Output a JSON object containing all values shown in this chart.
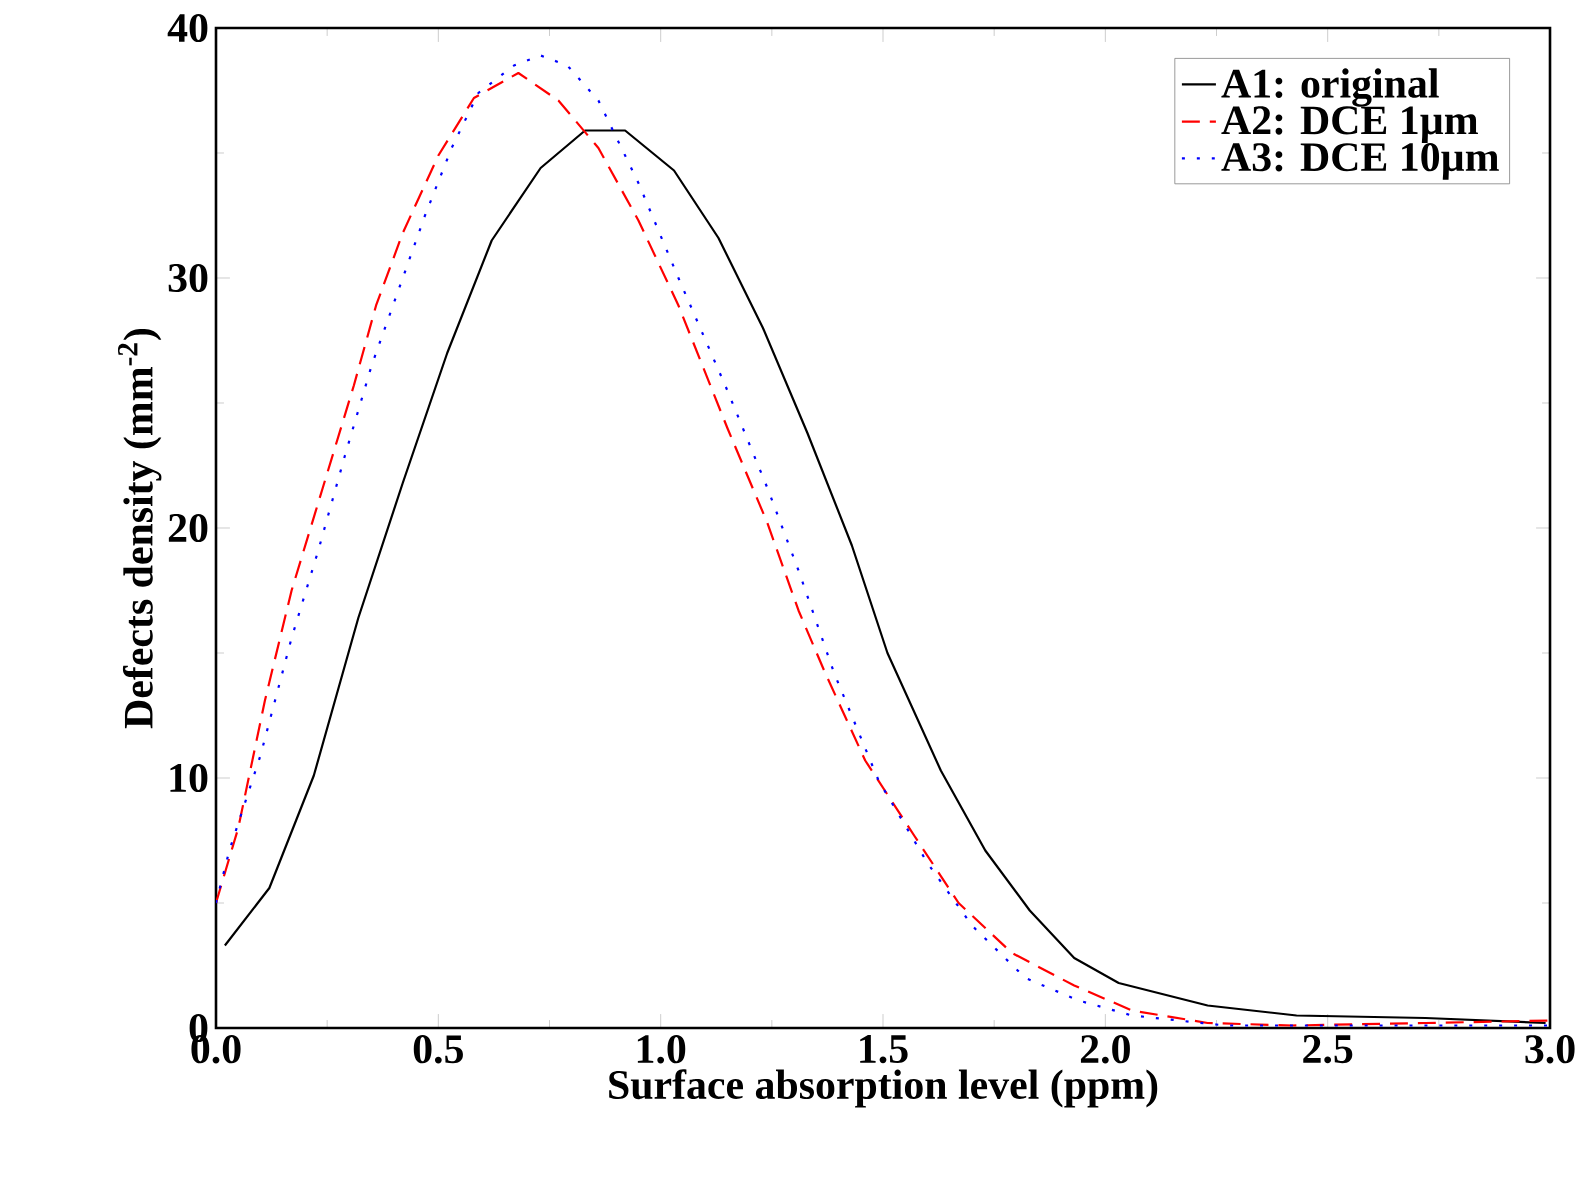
{
  "chart_data": {
    "type": "line",
    "xlabel": "Surface absorption level (ppm)",
    "ylabel": "Defects density (mm$^{-2}$)",
    "xlim": [
      0,
      3
    ],
    "ylim": [
      0,
      40
    ],
    "xticks": [
      {
        "value": 0,
        "label": "0.0"
      },
      {
        "value": 0.5,
        "label": "0.5"
      },
      {
        "value": 1,
        "label": "1.0"
      },
      {
        "value": 1.5,
        "label": "1.5"
      },
      {
        "value": 2,
        "label": "2.0"
      },
      {
        "value": 2.5,
        "label": "2.5"
      },
      {
        "value": 3,
        "label": "3.0"
      }
    ],
    "yticks": [
      0,
      10,
      20,
      30,
      40
    ],
    "legend": "top right",
    "grid": false,
    "series": [
      {
        "name": "A1: original",
        "color": "#000000",
        "line_style": "solid",
        "x": [
          0.02,
          0.12,
          0.22,
          0.32,
          0.42,
          0.52,
          0.62,
          0.73,
          0.83,
          0.92,
          1.03,
          1.13,
          1.23,
          1.33,
          1.43,
          1.51,
          1.63,
          1.73,
          1.83,
          1.93,
          2.03,
          2.23,
          2.43,
          2.72,
          2.99
        ],
        "values": [
          3.3,
          5.6,
          10.1,
          16.4,
          21.8,
          27.0,
          31.5,
          34.4,
          35.9,
          35.9,
          34.3,
          31.6,
          28.0,
          23.8,
          19.3,
          15.0,
          10.3,
          7.1,
          4.7,
          2.8,
          1.8,
          0.9,
          0.5,
          0.4,
          0.2
        ]
      },
      {
        "name": "A2: DCE 1µm",
        "color": "#ff0000",
        "line_style": "dashed",
        "x": [
          0.0,
          0.05,
          0.11,
          0.17,
          0.24,
          0.31,
          0.36,
          0.42,
          0.5,
          0.58,
          0.68,
          0.77,
          0.86,
          0.95,
          1.04,
          1.15,
          1.24,
          1.31,
          1.37,
          1.46,
          1.57,
          1.67,
          1.79,
          1.93,
          2.06,
          2.23,
          2.42,
          2.72,
          3.0
        ],
        "values": [
          5.0,
          8.0,
          13.1,
          17.5,
          21.6,
          25.7,
          28.9,
          31.8,
          34.9,
          37.2,
          38.2,
          37.1,
          35.2,
          32.3,
          28.9,
          24.0,
          20.2,
          16.7,
          14.2,
          10.7,
          7.7,
          5.0,
          3.0,
          1.7,
          0.7,
          0.2,
          0.1,
          0.2,
          0.3
        ]
      },
      {
        "name": "A3: DCE 10µm",
        "color": "#0000ff",
        "line_style": "dotted",
        "x": [
          0.0,
          0.03,
          0.1,
          0.17,
          0.23,
          0.29,
          0.35,
          0.41,
          0.47,
          0.53,
          0.59,
          0.67,
          0.73,
          0.79,
          0.86,
          0.95,
          1.04,
          1.15,
          1.24,
          1.31,
          1.39,
          1.49,
          1.6,
          1.7,
          1.82,
          1.94,
          2.06,
          2.27,
          2.57,
          3.0
        ],
        "values": [
          5.0,
          7.1,
          10.9,
          15.6,
          19.1,
          22.9,
          26.5,
          29.5,
          32.5,
          35.2,
          37.4,
          38.5,
          38.9,
          38.5,
          37.1,
          33.8,
          30.0,
          25.5,
          21.6,
          18.3,
          14.2,
          9.9,
          6.6,
          4.1,
          2.0,
          1.1,
          0.5,
          0.1,
          0.1,
          0.1
        ]
      }
    ]
  }
}
